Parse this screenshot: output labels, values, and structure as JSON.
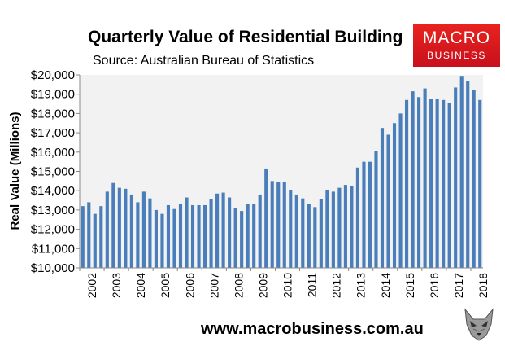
{
  "header": {
    "title": "Quarterly Value of Residential Building",
    "subtitle": "Source: Australian Bureau of Statistics"
  },
  "logo": {
    "line1": "MACRO",
    "line2": "BUSINESS",
    "color": "#d7191f"
  },
  "footer": {
    "url": "www.macrobusiness.com.au"
  },
  "chart_data": {
    "type": "bar",
    "title": "Quarterly Value of Residential Building",
    "ylabel": "Real Value (Millions)",
    "xlabel": "",
    "ylim": [
      10000,
      20000
    ],
    "y_ticks": [
      "$10,000",
      "$11,000",
      "$12,000",
      "$13,000",
      "$14,000",
      "$15,000",
      "$16,000",
      "$17,000",
      "$18,000",
      "$19,000",
      "$20,000"
    ],
    "x_ticks": [
      "2002",
      "2003",
      "2004",
      "2005",
      "2006",
      "2007",
      "2008",
      "2009",
      "2010",
      "2011",
      "2012",
      "2013",
      "2014",
      "2015",
      "2016",
      "2017",
      "2018"
    ],
    "bar_color": "#4a7ebb",
    "plot_background": "#f2f2f2",
    "grid": false,
    "values": [
      13200,
      13400,
      12800,
      13200,
      13950,
      14400,
      14150,
      14100,
      13800,
      13400,
      13950,
      13600,
      13000,
      12800,
      13250,
      13050,
      13300,
      13650,
      13250,
      13250,
      13250,
      13550,
      13850,
      13900,
      13650,
      13100,
      12950,
      13300,
      13300,
      13800,
      15150,
      14500,
      14450,
      14450,
      14050,
      13800,
      13600,
      13300,
      13150,
      13550,
      14050,
      13950,
      14150,
      14300,
      14250,
      15200,
      15500,
      15500,
      16050,
      17250,
      16900,
      17500,
      18000,
      18700,
      19150,
      18850,
      19300,
      18750,
      18750,
      18700,
      18550,
      19350,
      19950,
      19700,
      19200,
      18700
    ]
  }
}
